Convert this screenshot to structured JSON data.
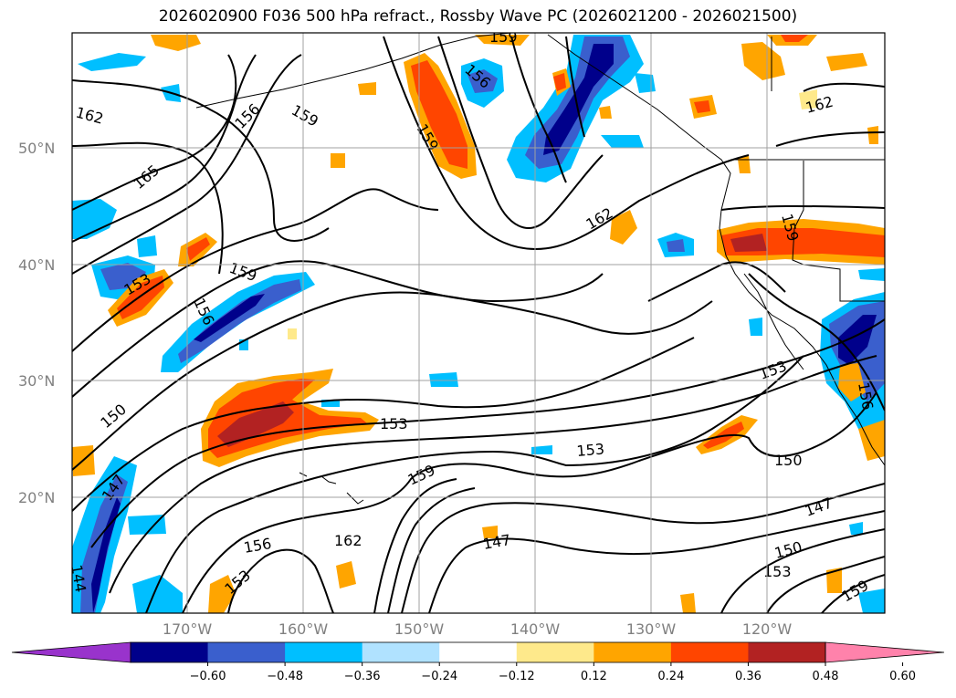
{
  "title": "2026020900 F036 500 hPa refract., Rossby Wave PC (2026021200 - 2026021500)",
  "longitude_labels": [
    "170°W",
    "160°W",
    "150°W",
    "140°W",
    "130°W",
    "120°W"
  ],
  "latitude_labels": [
    "50°N",
    "40°N",
    "30°N",
    "20°N"
  ],
  "contour_labels": [
    "162",
    "165",
    "156",
    "159",
    "159",
    "156",
    "159",
    "162",
    "162",
    "159",
    "153",
    "156",
    "150",
    "147",
    "144",
    "153",
    "153",
    "159",
    "162",
    "147",
    "150",
    "153",
    "150",
    "147",
    "153",
    "156",
    "159",
    "156",
    "159",
    "153"
  ],
  "colorbar": {
    "ticks": [
      "−0.60",
      "−0.48",
      "−0.36",
      "−0.24",
      "−0.12",
      "0.12",
      "0.24",
      "0.36",
      "0.48",
      "0.60"
    ],
    "colors": [
      "#9933cc",
      "#00008b",
      "#3a5fcd",
      "#00bfff",
      "#b0e2ff",
      "#ffffff",
      "#fee98b",
      "#ffa500",
      "#ff4500",
      "#b22222",
      "#ff82ab"
    ]
  }
}
